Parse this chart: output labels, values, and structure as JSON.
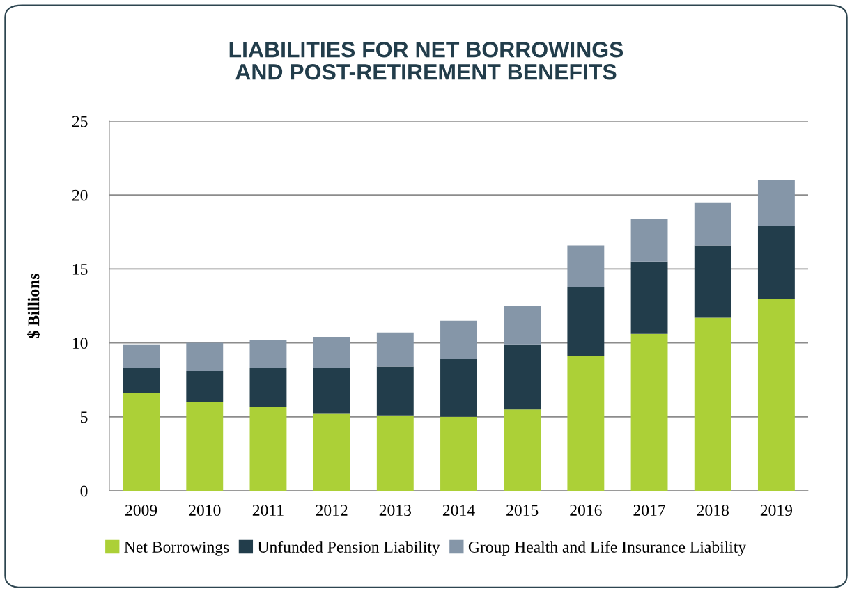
{
  "chart_data": {
    "type": "bar",
    "title": "LIABILITIES FOR NET BORROWINGS\nAND POST-RETIREMENT BENEFITS",
    "ylabel": "$ Billions",
    "categories": [
      "2009",
      "2010",
      "2011",
      "2012",
      "2013",
      "2014",
      "2015",
      "2016",
      "2017",
      "2018",
      "2019"
    ],
    "stacked": true,
    "series": [
      {
        "name": "Net Borrowings",
        "color": "#acd037",
        "values": [
          6.6,
          6.0,
          5.7,
          5.2,
          5.1,
          5.0,
          5.5,
          9.1,
          10.6,
          11.7,
          13.0
        ]
      },
      {
        "name": "Unfunded Pension Liability",
        "color": "#223d4b",
        "values": [
          1.7,
          2.1,
          2.6,
          3.1,
          3.3,
          3.9,
          4.4,
          4.7,
          4.9,
          4.9,
          4.9
        ]
      },
      {
        "name": "Group Health and Life Insurance Liability",
        "color": "#8596a8",
        "values": [
          1.6,
          1.9,
          1.9,
          2.1,
          2.3,
          2.6,
          2.6,
          2.8,
          2.9,
          2.9,
          3.1
        ]
      }
    ],
    "ylim": [
      0,
      25
    ],
    "yticks": [
      0,
      5,
      10,
      15,
      20,
      25
    ],
    "grid": "y",
    "legend": "bottom"
  }
}
